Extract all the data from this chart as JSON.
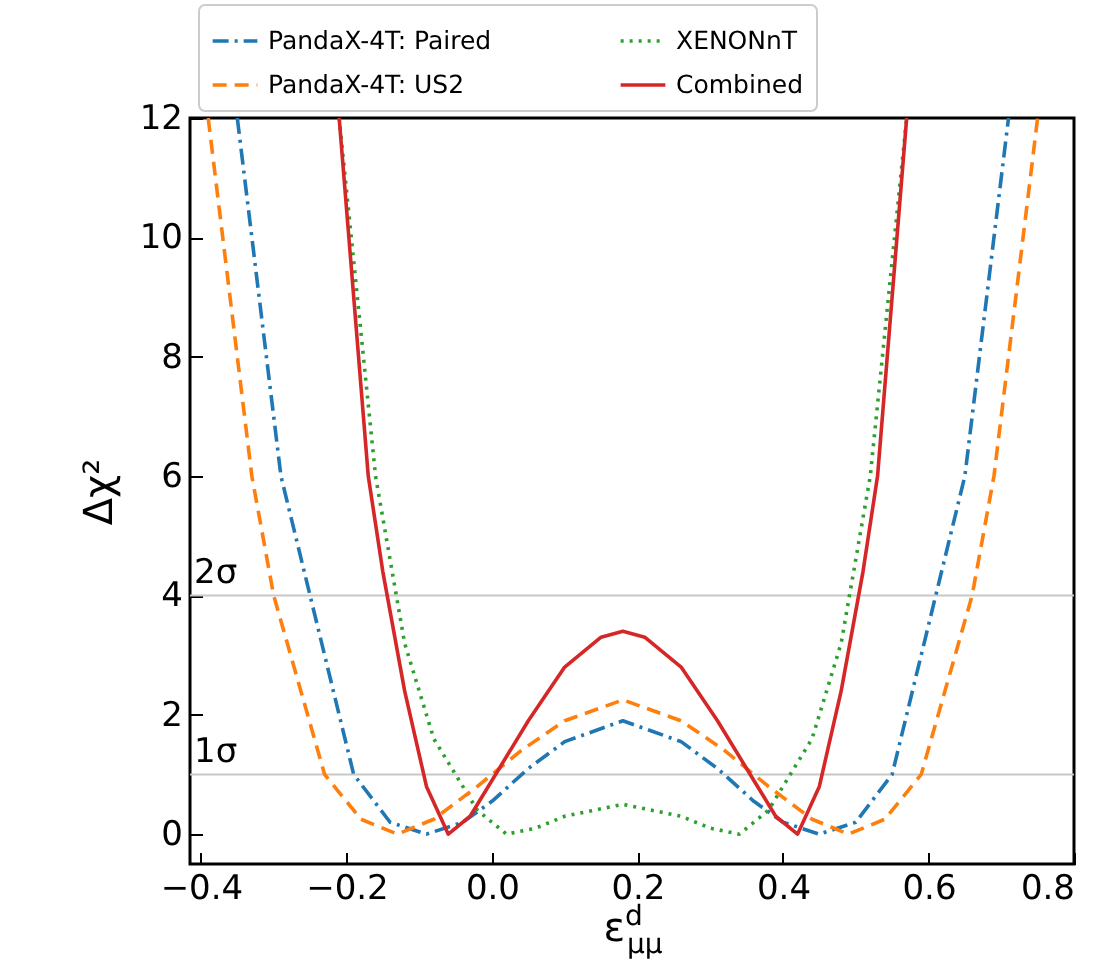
{
  "chart_data": {
    "type": "line",
    "xlabel": "ε$^{d}$$_{μμ}$",
    "ylabel": "Δχ²",
    "xlim": [
      -0.415,
      0.8
    ],
    "ylim": [
      -0.5,
      12
    ],
    "xticks": [
      -0.4,
      -0.2,
      {
        "value": 0,
        "label": "0.0"
      },
      0.2,
      0.4,
      0.6,
      0.8
    ],
    "yticks": [
      0,
      2,
      4,
      6,
      8,
      10,
      12
    ],
    "grid": false,
    "legend": "top",
    "series": [
      {
        "name": "PandaX-4T: Paired",
        "color": "#1f77b4",
        "line_style": "dashdot",
        "x": [
          -0.35,
          -0.29,
          -0.25,
          -0.19,
          -0.14,
          -0.09,
          -0.04,
          0.0,
          0.05,
          0.1,
          0.18,
          0.26,
          0.31,
          0.36,
          0.4,
          0.45,
          0.5,
          0.55,
          0.61,
          0.65,
          0.71
        ],
        "values": [
          12,
          6,
          4,
          1,
          0.2,
          0,
          0.2,
          0.55,
          1.1,
          1.55,
          1.9,
          1.55,
          1.1,
          0.55,
          0.2,
          0,
          0.2,
          1,
          4,
          6,
          12
        ]
      },
      {
        "name": "XENONnT",
        "color": "#2ca02c",
        "line_style": "dotted",
        "x": [
          -0.21,
          -0.16,
          -0.12,
          -0.08,
          -0.05,
          -0.02,
          0.02,
          0.06,
          0.1,
          0.18,
          0.26,
          0.3,
          0.34,
          0.38,
          0.41,
          0.44,
          0.48,
          0.52,
          0.57
        ],
        "values": [
          12,
          6,
          3.2,
          1.6,
          1,
          0.4,
          0,
          0.1,
          0.3,
          0.5,
          0.3,
          0.1,
          0,
          0.4,
          1,
          1.6,
          3.2,
          6,
          12
        ]
      },
      {
        "name": "PandaX-4T: US2",
        "color": "#ff7f0e",
        "line_style": "dashed",
        "x": [
          -0.39,
          -0.33,
          -0.3,
          -0.23,
          -0.18,
          -0.13,
          -0.08,
          -0.02,
          0.04,
          0.1,
          0.18,
          0.26,
          0.32,
          0.38,
          0.44,
          0.49,
          0.54,
          0.59,
          0.66,
          0.69,
          0.75
        ],
        "values": [
          12,
          6,
          4,
          1,
          0.25,
          0,
          0.25,
          0.8,
          1.4,
          1.9,
          2.25,
          1.9,
          1.4,
          0.8,
          0.25,
          0,
          0.25,
          1,
          4,
          6,
          12
        ]
      },
      {
        "name": "Combined",
        "color": "#d62728",
        "line_style": "solid",
        "x": [
          -0.21,
          -0.17,
          -0.15,
          -0.12,
          -0.09,
          -0.06,
          -0.03,
          0.0,
          0.05,
          0.1,
          0.15,
          0.18,
          0.21,
          0.26,
          0.31,
          0.36,
          0.39,
          0.42,
          0.45,
          0.48,
          0.51,
          0.53,
          0.57
        ],
        "values": [
          12,
          6,
          4.4,
          2.4,
          0.8,
          0,
          0.3,
          0.9,
          1.9,
          2.8,
          3.3,
          3.4,
          3.3,
          2.8,
          1.9,
          0.9,
          0.3,
          0,
          0.8,
          2.4,
          4.4,
          6,
          12
        ]
      }
    ],
    "ref_lines": [
      {
        "axis": "y",
        "value": 4,
        "label": "2σ",
        "color": "#c8c8c8"
      },
      {
        "axis": "y",
        "value": 1,
        "label": "1σ",
        "color": "#c8c8c8"
      }
    ]
  }
}
